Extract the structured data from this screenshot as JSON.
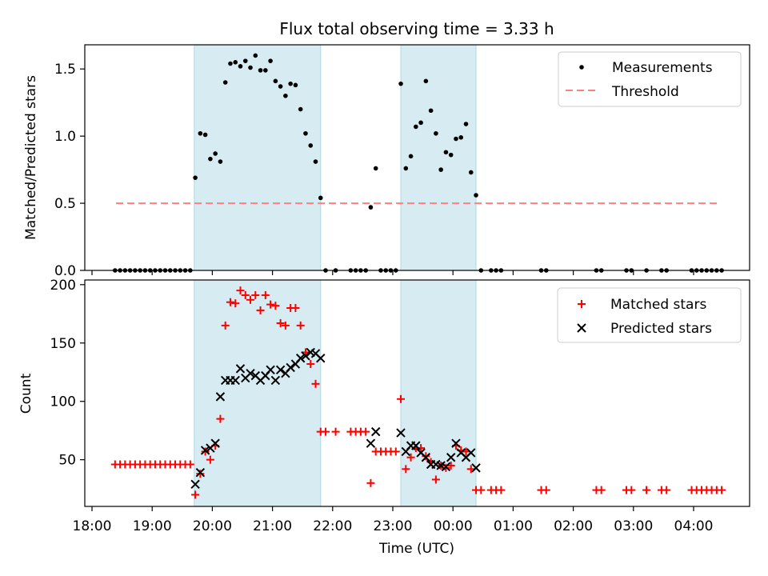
{
  "title": "Flux total observing time = 3.33 h",
  "xlabel": "Time (UTC)",
  "x_ticks": [
    "18:00",
    "19:00",
    "20:00",
    "21:00",
    "22:00",
    "23:00",
    "00:00",
    "01:00",
    "02:00",
    "03:00",
    "04:00"
  ],
  "colors": {
    "shade": "#add8e6",
    "measurement": "#000000",
    "threshold": "#ff7f7f",
    "matched": "#ff0000",
    "predicted": "#000000"
  },
  "chart_data": [
    {
      "type": "scatter",
      "ylabel": "Matched/Predicted stars",
      "xlim": [
        "18:00",
        "04:55"
      ],
      "ylim": [
        0,
        1.68
      ],
      "y_ticks": [
        0.0,
        0.5,
        1.0,
        1.5
      ],
      "shaded_intervals": [
        [
          "19:42",
          "21:48"
        ],
        [
          "23:08",
          "00:23"
        ]
      ],
      "legend": {
        "position": "upper right",
        "entries": [
          "Measurements",
          "Threshold"
        ]
      },
      "threshold": {
        "name": "Threshold",
        "value": 0.5,
        "x_range": [
          "18:24",
          "04:26"
        ]
      },
      "series": [
        {
          "name": "Measurements",
          "x": [
            "18:23",
            "18:28",
            "18:33",
            "18:38",
            "18:43",
            "18:48",
            "18:53",
            "18:58",
            "19:03",
            "19:08",
            "19:13",
            "19:18",
            "19:23",
            "19:28",
            "19:33",
            "19:38",
            "19:43",
            "19:48",
            "19:53",
            "19:58",
            "20:03",
            "20:08",
            "20:13",
            "20:18",
            "20:23",
            "20:28",
            "20:33",
            "20:38",
            "20:43",
            "20:48",
            "20:53",
            "20:58",
            "21:03",
            "21:08",
            "21:13",
            "21:18",
            "21:23",
            "21:28",
            "21:33",
            "21:38",
            "21:43",
            "21:48",
            "21:53",
            "22:03",
            "22:18",
            "22:23",
            "22:28",
            "22:33",
            "22:38",
            "22:43",
            "22:48",
            "22:53",
            "22:58",
            "23:03",
            "23:08",
            "23:13",
            "23:18",
            "23:23",
            "23:28",
            "23:33",
            "23:38",
            "23:43",
            "23:48",
            "23:53",
            "23:58",
            "00:03",
            "00:08",
            "00:13",
            "00:18",
            "00:23",
            "00:28",
            "00:38",
            "00:43",
            "00:48",
            "01:28",
            "01:33",
            "02:23",
            "02:28",
            "02:53",
            "02:58",
            "03:13",
            "03:28",
            "03:33",
            "03:58",
            "04:03",
            "04:08",
            "04:13",
            "04:18",
            "04:23",
            "04:28"
          ],
          "y": [
            0,
            0,
            0,
            0,
            0,
            0,
            0,
            0,
            0,
            0,
            0,
            0,
            0,
            0,
            0,
            0,
            0.69,
            1.02,
            1.01,
            0.83,
            0.87,
            0.81,
            1.4,
            1.54,
            1.55,
            1.52,
            1.56,
            1.51,
            1.6,
            1.49,
            1.49,
            1.56,
            1.41,
            1.37,
            1.3,
            1.39,
            1.38,
            1.2,
            1.02,
            0.93,
            0.81,
            0.54,
            0,
            0,
            0,
            0,
            0,
            0,
            0.47,
            0.76,
            0,
            0,
            0,
            0,
            1.39,
            0.76,
            0.85,
            1.07,
            1.1,
            1.41,
            1.19,
            1.02,
            0.75,
            0.88,
            0.86,
            0.98,
            0.99,
            1.09,
            0.73,
            0.56,
            0,
            0,
            0,
            0,
            0,
            0,
            0,
            0,
            0,
            0,
            0,
            0,
            0,
            0,
            0,
            0,
            0,
            0,
            0,
            0
          ]
        }
      ]
    },
    {
      "type": "scatter",
      "ylabel": "Count",
      "xlim": [
        "18:00",
        "04:55"
      ],
      "ylim": [
        10,
        204
      ],
      "y_ticks": [
        50,
        100,
        150,
        200
      ],
      "shaded_intervals": [
        [
          "19:42",
          "21:48"
        ],
        [
          "23:08",
          "00:23"
        ]
      ],
      "legend": {
        "position": "upper right",
        "entries": [
          "Matched stars",
          "Predicted stars"
        ]
      },
      "series": [
        {
          "name": "Matched stars",
          "marker": "+",
          "x": [
            "18:23",
            "18:28",
            "18:33",
            "18:38",
            "18:43",
            "18:48",
            "18:53",
            "18:58",
            "19:03",
            "19:08",
            "19:13",
            "19:18",
            "19:23",
            "19:28",
            "19:33",
            "19:38",
            "19:43",
            "19:48",
            "19:53",
            "19:58",
            "20:03",
            "20:08",
            "20:13",
            "20:18",
            "20:23",
            "20:28",
            "20:33",
            "20:38",
            "20:43",
            "20:48",
            "20:53",
            "20:58",
            "21:03",
            "21:08",
            "21:13",
            "21:18",
            "21:23",
            "21:28",
            "21:33",
            "21:38",
            "21:43",
            "21:48",
            "21:53",
            "22:03",
            "22:18",
            "22:23",
            "22:28",
            "22:33",
            "22:38",
            "22:43",
            "22:48",
            "22:53",
            "22:58",
            "23:03",
            "23:08",
            "23:13",
            "23:18",
            "23:23",
            "23:28",
            "23:33",
            "23:38",
            "23:43",
            "23:48",
            "23:53",
            "23:58",
            "00:03",
            "00:08",
            "00:13",
            "00:18",
            "00:23",
            "00:28",
            "00:38",
            "00:43",
            "00:48",
            "01:28",
            "01:33",
            "02:23",
            "02:28",
            "02:53",
            "02:58",
            "03:13",
            "03:28",
            "03:33",
            "03:58",
            "04:03",
            "04:08",
            "04:13",
            "04:18",
            "04:23",
            "04:28"
          ],
          "y": [
            46,
            46,
            46,
            46,
            46,
            46,
            46,
            46,
            46,
            46,
            46,
            46,
            46,
            46,
            46,
            46,
            20,
            38,
            57,
            50,
            62,
            85,
            165,
            185,
            184,
            195,
            191,
            187,
            191,
            178,
            191,
            183,
            182,
            167,
            165,
            180,
            180,
            165,
            142,
            132,
            115,
            74,
            74,
            74,
            74,
            74,
            74,
            74,
            30,
            57,
            57,
            57,
            57,
            57,
            102,
            42,
            52,
            60,
            60,
            53,
            48,
            33,
            45,
            43,
            45,
            62,
            58,
            57,
            42,
            24,
            24,
            24,
            24,
            24,
            24,
            24,
            24,
            24,
            24,
            24,
            24,
            24,
            24,
            24,
            24,
            24,
            24,
            24,
            24,
            24
          ]
        },
        {
          "name": "Predicted stars",
          "marker": "x",
          "x": [
            "19:43",
            "19:48",
            "19:53",
            "19:58",
            "20:03",
            "20:08",
            "20:13",
            "20:18",
            "20:23",
            "20:28",
            "20:33",
            "20:38",
            "20:43",
            "20:48",
            "20:53",
            "20:58",
            "21:03",
            "21:08",
            "21:13",
            "21:18",
            "21:23",
            "21:28",
            "21:33",
            "21:38",
            "21:43",
            "21:48",
            "22:38",
            "22:43",
            "23:08",
            "23:13",
            "23:18",
            "23:23",
            "23:28",
            "23:33",
            "23:38",
            "23:43",
            "23:48",
            "23:53",
            "23:58",
            "00:03",
            "00:08",
            "00:13",
            "00:18",
            "00:23"
          ],
          "y": [
            29,
            39,
            58,
            60,
            64,
            104,
            118,
            118,
            118,
            128,
            120,
            124,
            122,
            118,
            122,
            127,
            118,
            127,
            124,
            129,
            132,
            137,
            139,
            142,
            141,
            137,
            64,
            74,
            73,
            57,
            62,
            62,
            56,
            52,
            46,
            46,
            45,
            44,
            52,
            64,
            56,
            52,
            56,
            43
          ]
        }
      ]
    }
  ]
}
